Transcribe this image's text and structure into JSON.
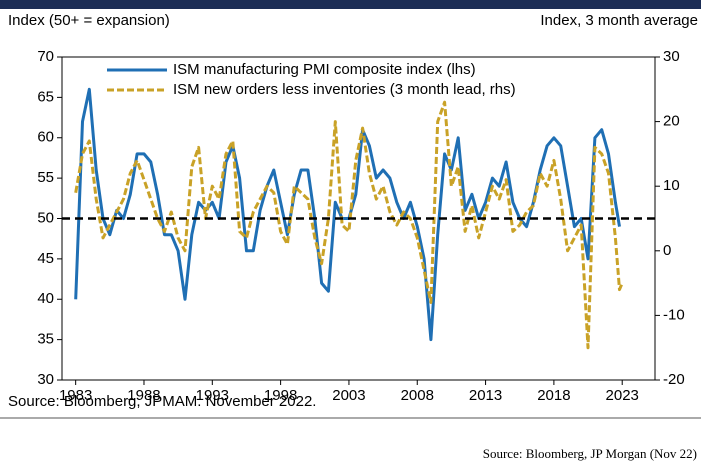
{
  "chart_data": {
    "type": "line",
    "left_axis_label": "Index (50+ = expansion)",
    "right_axis_label": "Index, 3 month average",
    "source": "Source: Bloomberg, JPMAM. November 2022.",
    "footer_source": "Source: Bloomberg, JP Morgan (Nov 22)",
    "x": [
      1983.0,
      1983.5,
      1984.0,
      1984.5,
      1985.0,
      1985.5,
      1986.0,
      1986.5,
      1987.0,
      1987.5,
      1988.0,
      1988.5,
      1989.0,
      1989.5,
      1990.0,
      1990.5,
      1991.0,
      1991.5,
      1992.0,
      1992.5,
      1993.0,
      1993.5,
      1994.0,
      1994.5,
      1995.0,
      1995.5,
      1996.0,
      1996.5,
      1997.0,
      1997.5,
      1998.0,
      1998.5,
      1999.0,
      1999.5,
      2000.0,
      2000.5,
      2001.0,
      2001.5,
      2002.0,
      2002.5,
      2003.0,
      2003.5,
      2004.0,
      2004.5,
      2005.0,
      2005.5,
      2006.0,
      2006.5,
      2007.0,
      2007.5,
      2008.0,
      2008.5,
      2009.0,
      2009.5,
      2010.0,
      2010.5,
      2011.0,
      2011.5,
      2012.0,
      2012.5,
      2013.0,
      2013.5,
      2014.0,
      2014.5,
      2015.0,
      2015.5,
      2016.0,
      2016.5,
      2017.0,
      2017.5,
      2018.0,
      2018.5,
      2019.0,
      2019.5,
      2020.0,
      2020.5,
      2021.0,
      2021.5,
      2022.0,
      2022.5,
      2022.8,
      2023.0
    ],
    "series": [
      {
        "name": "ISM manufacturing PMI composite index (lhs)",
        "color": "#1f6fb4",
        "dash": false,
        "values": [
          40,
          62,
          66,
          56,
          50,
          48,
          51,
          50,
          53,
          58,
          58,
          57,
          53,
          48,
          48,
          46,
          40,
          48,
          52,
          51,
          52,
          50,
          57,
          59,
          55,
          46,
          46,
          51,
          54,
          56,
          52,
          48,
          53,
          56,
          56,
          50,
          42,
          41,
          52,
          50,
          50,
          53,
          61,
          59,
          55,
          56,
          55,
          52,
          50,
          52,
          49,
          45,
          35,
          48,
          58,
          56,
          60,
          51,
          53,
          50,
          52,
          55,
          54,
          57,
          52,
          50,
          49,
          52,
          56,
          59,
          60,
          59,
          54,
          49,
          50,
          45,
          60,
          61,
          58,
          52,
          49,
          null
        ]
      },
      {
        "name": "ISM new orders less inventories (3 month lead, rhs)",
        "color": "#c9a227",
        "dash": true,
        "axis": "y2",
        "values": [
          9,
          15,
          17,
          8,
          2,
          4,
          6,
          8,
          12,
          14,
          11,
          8,
          5,
          3,
          6,
          2,
          0,
          13,
          16,
          5,
          10,
          8,
          15,
          17,
          3,
          2,
          6,
          8,
          10,
          9,
          3,
          1,
          10,
          9,
          8,
          2,
          -2,
          5,
          20,
          4,
          3,
          14,
          19,
          12,
          8,
          10,
          6,
          4,
          6,
          5,
          2,
          -3,
          -8,
          20,
          23,
          10,
          13,
          3,
          7,
          2,
          6,
          10,
          8,
          11,
          3,
          4,
          6,
          7,
          12,
          10,
          14,
          8,
          0,
          2,
          4,
          -15,
          16,
          15,
          12,
          2,
          -6,
          -5
        ]
      }
    ],
    "reference_line": 50,
    "xlim": [
      1982,
      2025.4
    ],
    "xticks": [
      1983,
      1988,
      1993,
      1998,
      2003,
      2008,
      2013,
      2018,
      2023
    ],
    "ylim": [
      30,
      70
    ],
    "yticks": [
      30,
      35,
      40,
      45,
      50,
      55,
      60,
      65,
      70
    ],
    "y2lim": [
      -20,
      30
    ],
    "y2ticks": [
      -20,
      -10,
      0,
      10,
      20,
      30
    ],
    "legend": "upper left"
  }
}
